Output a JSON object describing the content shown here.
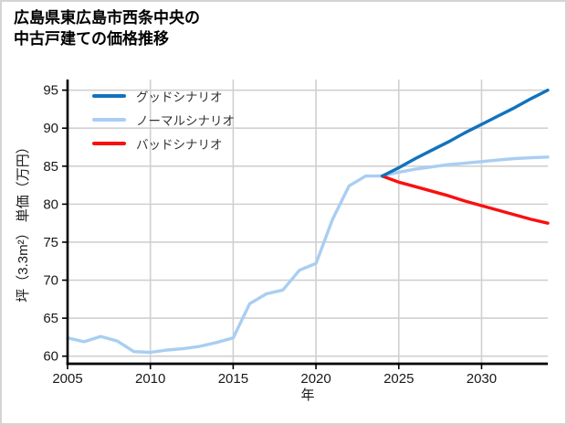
{
  "page": {
    "title_line1": "広島県東広島市西条中央の",
    "title_line2": "中古戸建ての価格推移",
    "border_color": "#d4d4d4",
    "background": "#ffffff"
  },
  "legend": {
    "items": [
      {
        "key": "good",
        "label": "グッドシナリオ",
        "color": "#1272bc"
      },
      {
        "key": "normal",
        "label": "ノーマルシナリオ",
        "color": "#a9cef2"
      },
      {
        "key": "bad",
        "label": "バッドシナリオ",
        "color": "#fa0f0f"
      }
    ]
  },
  "chart_data": {
    "type": "line",
    "title": "広島県東広島市西条中央の中古戸建ての価格推移",
    "xlabel": "年",
    "ylabel": "坪（3.3m²） 単価（万円）",
    "xlim": [
      2005,
      2034
    ],
    "ylim": [
      59.0,
      96.4
    ],
    "xticks": [
      2005,
      2010,
      2015,
      2020,
      2025,
      2030
    ],
    "yticks": [
      60,
      65,
      70,
      75,
      80,
      85,
      90,
      95
    ],
    "grid": true,
    "grid_color": "#d0d0d0",
    "axis_color": "#000000",
    "legend_position": "upper-left",
    "series": [
      {
        "key": "normal",
        "name": "ノーマルシナリオ",
        "color": "#a9cef2",
        "x": [
          2005,
          2006,
          2007,
          2008,
          2009,
          2010,
          2011,
          2012,
          2013,
          2014,
          2015,
          2016,
          2017,
          2018,
          2019,
          2020,
          2021,
          2022,
          2023,
          2024,
          2025,
          2026,
          2027,
          2028,
          2029,
          2030,
          2031,
          2032,
          2033,
          2034
        ],
        "y": [
          62.4,
          61.9,
          62.6,
          62.0,
          60.6,
          60.5,
          60.8,
          61.0,
          61.3,
          61.8,
          62.4,
          66.9,
          68.2,
          68.7,
          71.3,
          72.2,
          78.0,
          82.4,
          83.7,
          83.7,
          84.2,
          84.6,
          84.9,
          85.2,
          85.4,
          85.6,
          85.8,
          86.0,
          86.1,
          86.2
        ]
      },
      {
        "key": "bad",
        "name": "バッドシナリオ",
        "color": "#fa0f0f",
        "x": [
          2024,
          2025,
          2026,
          2027,
          2028,
          2029,
          2030,
          2031,
          2032,
          2033,
          2034
        ],
        "y": [
          83.7,
          82.9,
          82.3,
          81.7,
          81.1,
          80.4,
          79.8,
          79.2,
          78.6,
          78.0,
          77.5
        ]
      },
      {
        "key": "good",
        "name": "グッドシナリオ",
        "color": "#1272bc",
        "x": [
          2024,
          2025,
          2026,
          2027,
          2028,
          2029,
          2030,
          2031,
          2032,
          2033,
          2034
        ],
        "y": [
          83.7,
          84.8,
          86.0,
          87.1,
          88.2,
          89.4,
          90.5,
          91.6,
          92.7,
          93.9,
          95.0
        ]
      }
    ]
  }
}
